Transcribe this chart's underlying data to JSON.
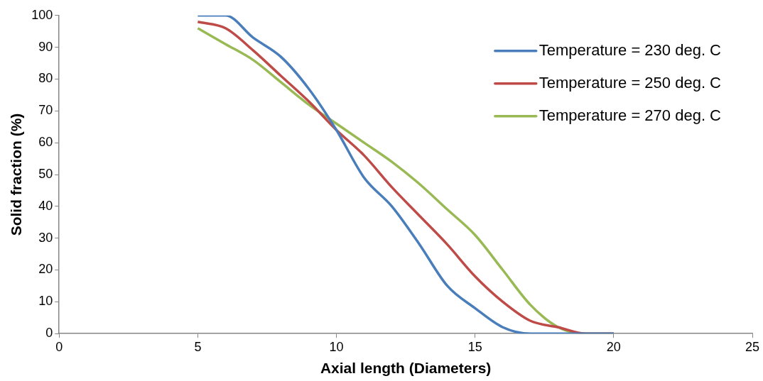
{
  "chart_data": {
    "type": "line",
    "xlabel": "Axial length (Diameters)",
    "ylabel": "Solid fraction (%)",
    "x": [
      5,
      6,
      7,
      8,
      9,
      10,
      11,
      12,
      13,
      14,
      15,
      16,
      17,
      18,
      19,
      20
    ],
    "series": [
      {
        "name": "Temperature = 230 deg. C",
        "color": "#4a7ebb",
        "values": [
          100,
          100,
          93,
          87,
          77,
          64,
          49,
          40,
          28,
          15,
          8,
          2,
          0,
          0,
          0,
          0
        ]
      },
      {
        "name": "Temperature = 250 deg. C",
        "color": "#be4b48",
        "values": [
          98,
          96,
          89,
          81,
          73,
          64,
          56,
          46,
          37,
          28,
          18,
          10,
          4,
          2,
          0,
          0
        ]
      },
      {
        "name": "Temperature = 270 deg. C",
        "color": "#98b954",
        "values": [
          96,
          91,
          86,
          79,
          72,
          66,
          60,
          54,
          47,
          39,
          31,
          20,
          9,
          2,
          0,
          0
        ]
      }
    ],
    "xlim": [
      0,
      25
    ],
    "xticks": [
      0,
      5,
      10,
      15,
      20,
      25
    ],
    "ylim": [
      0,
      100
    ],
    "yticks": [
      0,
      10,
      20,
      30,
      40,
      50,
      60,
      70,
      80,
      90,
      100
    ],
    "grid": false,
    "legend": "top right",
    "marker": "none",
    "line_style": "solid"
  }
}
